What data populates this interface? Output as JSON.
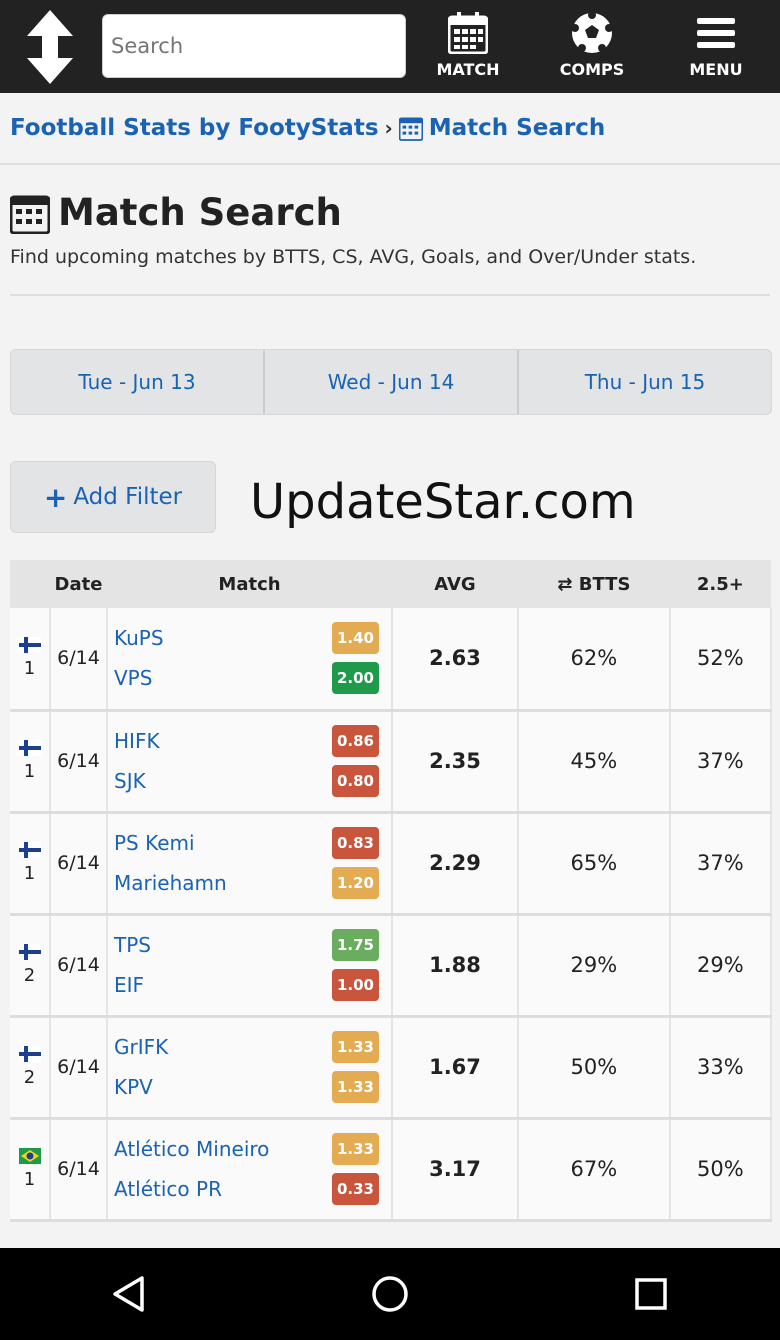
{
  "header": {
    "search_placeholder": "Search",
    "nav": [
      {
        "label": "MATCH",
        "icon": "calendar-icon"
      },
      {
        "label": "COMPS",
        "icon": "soccer-ball-icon"
      },
      {
        "label": "MENU",
        "icon": "hamburger-icon"
      }
    ]
  },
  "breadcrumb": {
    "home": "Football Stats by FootyStats",
    "sep": "›",
    "current": "Match Search"
  },
  "page": {
    "title": "Match Search",
    "subtitle": "Find upcoming matches by BTTS, CS, AVG, Goals, and Over/Under stats."
  },
  "days": [
    "Tue - Jun 13",
    "Wed - Jun 14",
    "Thu - Jun 15"
  ],
  "add_filter": "Add Filter",
  "table": {
    "headers": [
      "",
      "Date",
      "Match",
      "AVG",
      "BTTS",
      "2.5+"
    ],
    "rows": [
      {
        "country": "Finland",
        "league": "1",
        "date": "6/14",
        "home": "KuPS",
        "home_ppg": "1.40",
        "home_color": "#e3ac52",
        "away": "VPS",
        "away_ppg": "2.00",
        "away_color": "#1f9a4a",
        "avg": "2.63",
        "btts": "62%",
        "over": "52%"
      },
      {
        "country": "Finland",
        "league": "1",
        "date": "6/14",
        "home": "HIFK",
        "home_ppg": "0.86",
        "home_color": "#c9553d",
        "away": "SJK",
        "away_ppg": "0.80",
        "away_color": "#c9553d",
        "avg": "2.35",
        "btts": "45%",
        "over": "37%"
      },
      {
        "country": "Finland",
        "league": "1",
        "date": "6/14",
        "home": "PS Kemi",
        "home_ppg": "0.83",
        "home_color": "#c9553d",
        "away": "Mariehamn",
        "away_ppg": "1.20",
        "away_color": "#e3ac52",
        "avg": "2.29",
        "btts": "65%",
        "over": "37%"
      },
      {
        "country": "Finland",
        "league": "2",
        "date": "6/14",
        "home": "TPS",
        "home_ppg": "1.75",
        "home_color": "#6aad5e",
        "away": "EIF",
        "away_ppg": "1.00",
        "away_color": "#c9553d",
        "avg": "1.88",
        "btts": "29%",
        "over": "29%"
      },
      {
        "country": "Finland",
        "league": "2",
        "date": "6/14",
        "home": "GrIFK",
        "home_ppg": "1.33",
        "home_color": "#e3ac52",
        "away": "KPV",
        "away_ppg": "1.33",
        "away_color": "#e3ac52",
        "avg": "1.67",
        "btts": "50%",
        "over": "33%"
      },
      {
        "country": "Brazil",
        "league": "1",
        "date": "6/14",
        "home": "Atlético Mineiro",
        "home_ppg": "1.33",
        "home_color": "#e3ac52",
        "away": "Atlético PR",
        "away_ppg": "0.33",
        "away_color": "#c9553d",
        "avg": "3.17",
        "btts": "67%",
        "over": "50%"
      }
    ]
  },
  "watermark": "UpdateStar.com"
}
